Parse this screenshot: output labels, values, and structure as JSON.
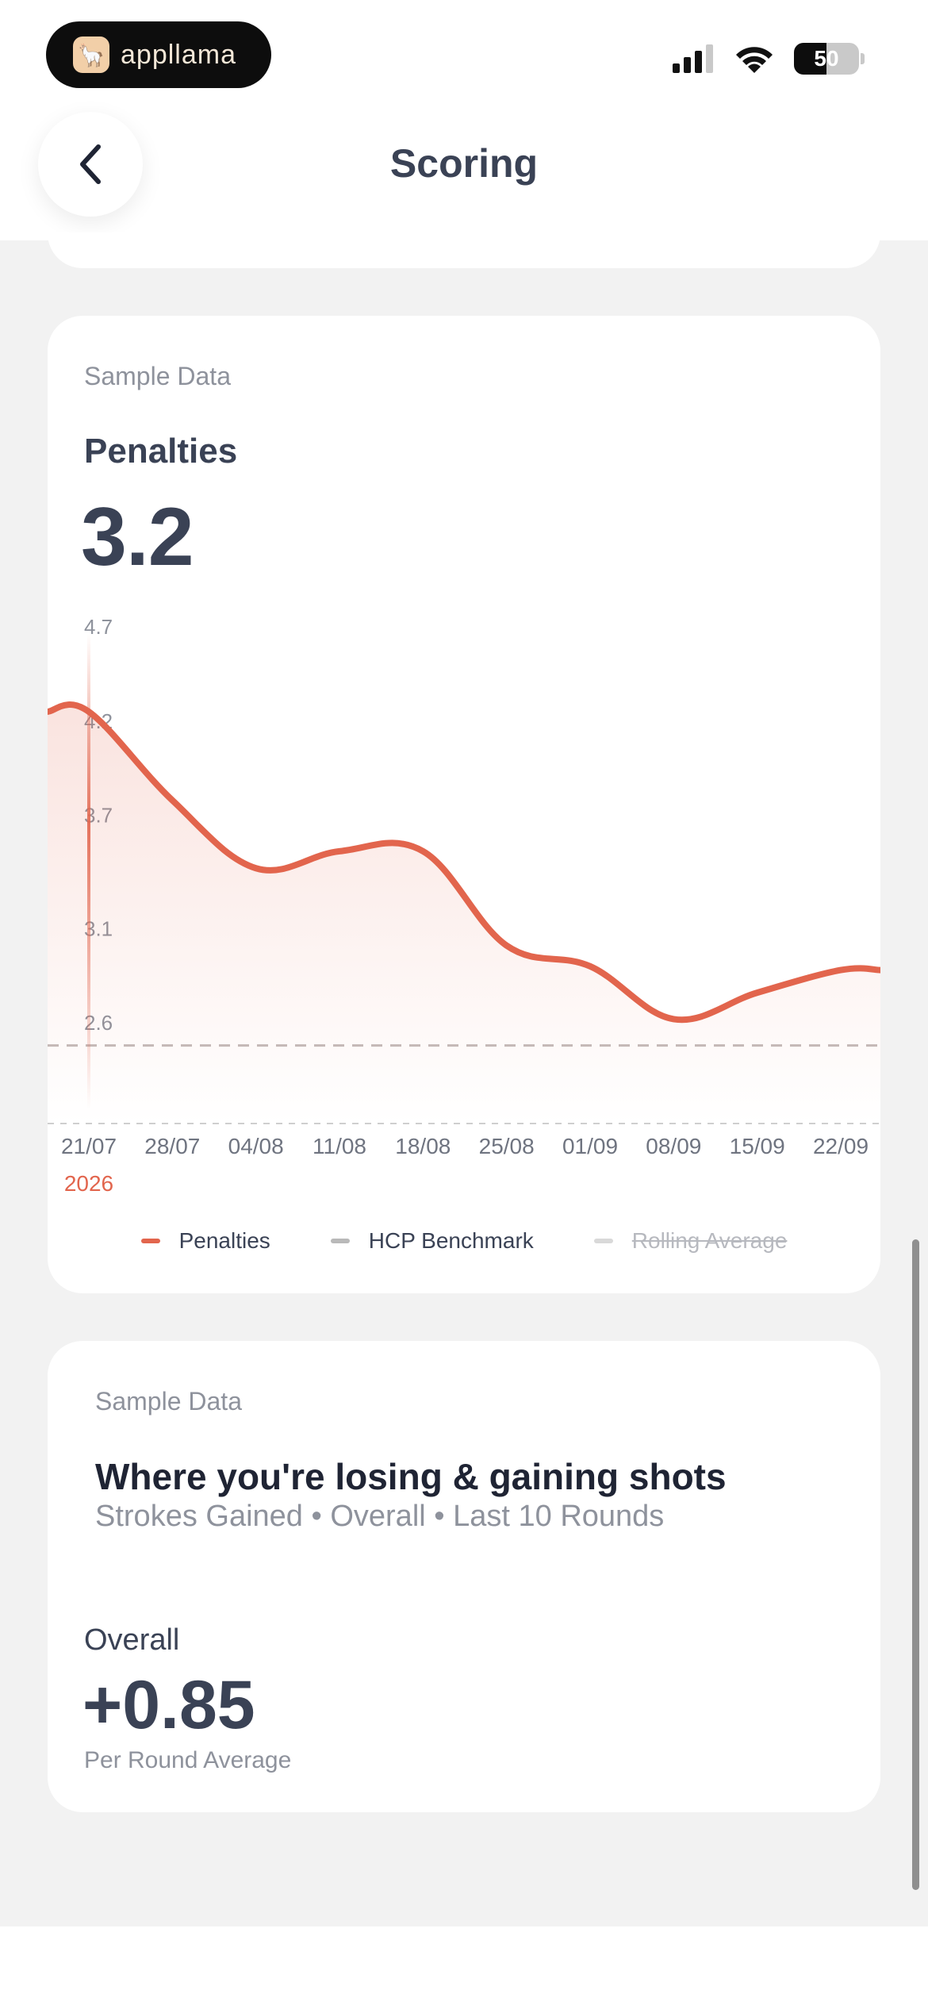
{
  "status_bar": {
    "app_name": "appllama",
    "battery": "50"
  },
  "header": {
    "title": "Scoring"
  },
  "penalties_card": {
    "sample_label": "Sample Data",
    "metric_name": "Penalties",
    "metric_value": "3.2",
    "legend": [
      {
        "label": "Penalties",
        "color": "#e2654d",
        "active": true
      },
      {
        "label": "HCP Benchmark",
        "color": "#b9b9b9",
        "active": true
      },
      {
        "label": "Rolling Average",
        "color": "#d9d9d9",
        "active": false
      }
    ]
  },
  "chart_data": {
    "type": "line",
    "x": [
      "21/07",
      "28/07",
      "04/08",
      "11/08",
      "18/08",
      "25/08",
      "01/09",
      "08/09",
      "15/09",
      "22/09"
    ],
    "x_year_label": "2026",
    "yticks": [
      "4.7",
      "4.2",
      "3.7",
      "3.1",
      "2.6"
    ],
    "ylim": [
      2.1,
      4.7
    ],
    "series": [
      {
        "name": "Penalties",
        "color": "#e2654d",
        "values": [
          4.25,
          3.78,
          3.42,
          3.51,
          3.51,
          3.01,
          2.9,
          2.62,
          2.76,
          2.88
        ]
      }
    ],
    "benchmark": {
      "name": "HCP Benchmark",
      "value": 2.48
    },
    "grid": false,
    "legend_position": "bottom"
  },
  "strokes_gained_card": {
    "sample_label": "Sample Data",
    "title": "Where you're losing & gaining shots",
    "subtitle": "Strokes Gained • Overall • Last 10 Rounds",
    "overall_label": "Overall",
    "overall_value": "+0.85",
    "caption": "Per Round Average"
  }
}
